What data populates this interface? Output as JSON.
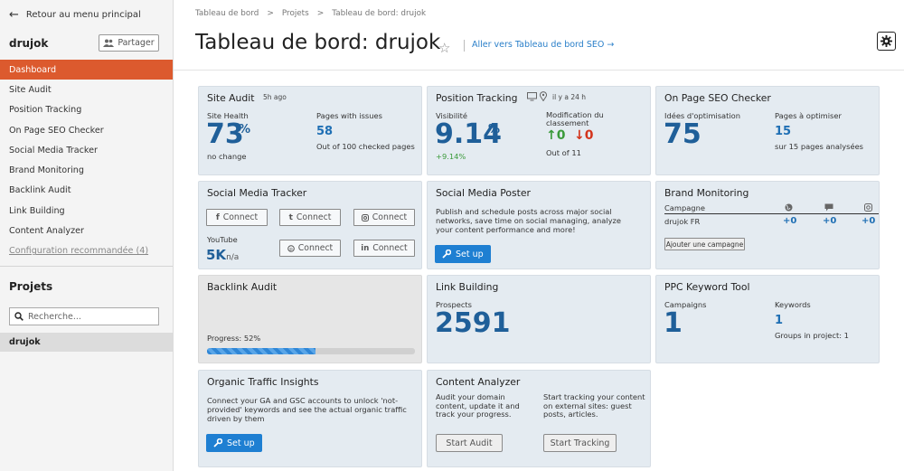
{
  "sidebar": {
    "back_label": "Retour au menu principal",
    "project_name": "drujok",
    "share_label": "Partager",
    "nav": [
      {
        "label": "Dashboard"
      },
      {
        "label": "Site Audit"
      },
      {
        "label": "Position Tracking"
      },
      {
        "label": "On Page SEO Checker"
      },
      {
        "label": "Social Media Tracker"
      },
      {
        "label": "Brand Monitoring"
      },
      {
        "label": "Backlink Audit"
      },
      {
        "label": "Link Building"
      },
      {
        "label": "Content Analyzer"
      },
      {
        "label": "Configuration recommandée (4)"
      }
    ],
    "projects_title": "Projets",
    "search_placeholder": "Recherche...",
    "projects": [
      {
        "name": "drujok"
      }
    ]
  },
  "header": {
    "breadcrumb": [
      "Tableau de bord",
      "Projets",
      "Tableau de bord: drujok"
    ],
    "title": "Tableau de bord: drujok",
    "seo_link": "Aller vers Tableau de bord SEO →"
  },
  "cards": {
    "site_audit": {
      "title": "Site Audit",
      "updated": "5h ago",
      "health_label": "Site Health",
      "health_value": "73",
      "health_unit": "%",
      "health_change": "no change",
      "issues_label": "Pages with issues",
      "issues_value": "58",
      "issues_sub": "Out of 100 checked pages"
    },
    "position_tracking": {
      "title": "Position Tracking",
      "updated": "il y a 24 h",
      "visibility_label": "Visibilité",
      "visibility_value": "9.14",
      "visibility_unit": "%",
      "visibility_change": "+9.14%",
      "change_label_1": "Modification du",
      "change_label_2": "classement",
      "up_value": "0",
      "down_value": "0",
      "out_of": "Out of 11"
    },
    "on_page_seo": {
      "title": "On Page SEO Checker",
      "ideas_label": "Idées d'optimisation",
      "ideas_value": "75",
      "pages_label": "Pages à optimiser",
      "pages_value": "15",
      "pages_sub": "sur 15 pages analysées"
    },
    "social_tracker": {
      "title": "Social Media Tracker",
      "connect_label": "Connect",
      "youtube_label": "YouTube",
      "youtube_value": "5K",
      "youtube_unit": "n/a"
    },
    "social_poster": {
      "title": "Social Media Poster",
      "desc": "Publish and schedule posts across major social networks, save time on social managing, analyze your content performance and more!",
      "setup_label": "Set up"
    },
    "brand_monitoring": {
      "title": "Brand Monitoring",
      "campaign_label": "Campagne",
      "campaign_name": "drujok FR",
      "v1": "+0",
      "v2": "+0",
      "v3": "+0",
      "add_label": "Ajouter une campagne"
    },
    "backlink_audit": {
      "title": "Backlink Audit",
      "progress_label": "Progress: 52%",
      "progress_value": 0.52
    },
    "link_building": {
      "title": "Link Building",
      "prospects_label": "Prospects",
      "prospects_value": "2591"
    },
    "ppc": {
      "title": "PPC Keyword Tool",
      "campaigns_label": "Campaigns",
      "campaigns_value": "1",
      "keywords_label": "Keywords",
      "keywords_value": "1",
      "groups_label": "Groups in project: 1"
    },
    "organic": {
      "title": "Organic Traffic Insights",
      "desc": "Connect your GA and GSC accounts to unlock 'not-provided' keywords and see the actual organic traffic driven by them",
      "setup_label": "Set up"
    },
    "content_analyzer": {
      "title": "Content Analyzer",
      "desc1": "Audit your domain content, update it and track your progress.",
      "desc2": "Start tracking your content on external sites: guest posts, articles.",
      "btn1": "Start Audit",
      "btn2": "Start Tracking"
    }
  },
  "colors": {
    "accent": "#dc5a2e",
    "link": "#2a7fc9",
    "card_bg": "#e4ebf1",
    "button": "#1e7fd2"
  }
}
